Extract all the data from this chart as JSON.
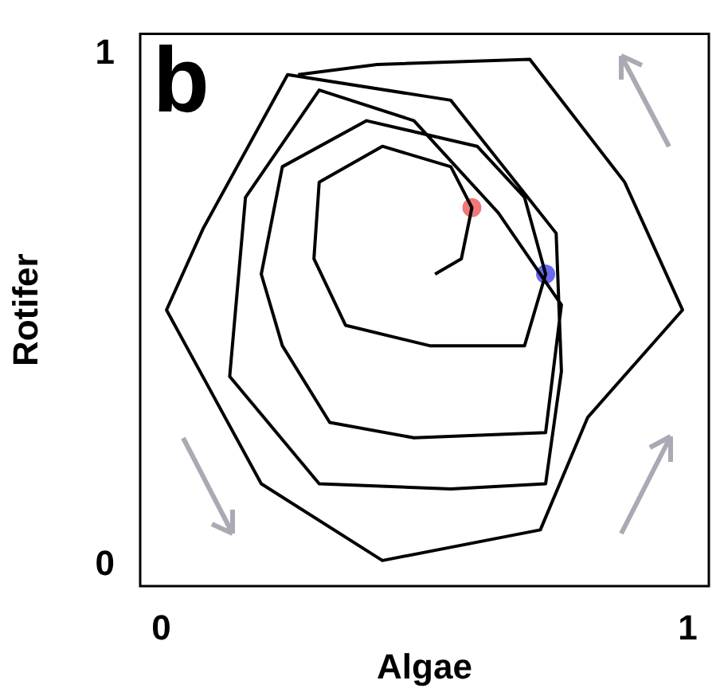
{
  "chart_data": {
    "type": "line",
    "xlabel": "Algae",
    "ylabel": "Rotifer",
    "annotations": [
      "b"
    ],
    "xlim": [
      -0.04,
      1.04
    ],
    "xticks": [
      0,
      1
    ],
    "ylim": [
      -0.04,
      1.04
    ],
    "yticks": [
      0,
      1
    ],
    "series": [
      {
        "color": "#000000",
        "marker": "none",
        "x": [
          0.52,
          0.57,
          0.59,
          0.55,
          0.42,
          0.3,
          0.29,
          0.35,
          0.51,
          0.69,
          0.73,
          0.69,
          0.6,
          0.39,
          0.23,
          0.19,
          0.23,
          0.32,
          0.48,
          0.73,
          0.76,
          0.64,
          0.48,
          0.3,
          0.16,
          0.13,
          0.3,
          0.55,
          0.73,
          0.76,
          0.75,
          0.55,
          0.24,
          0.08,
          0.01,
          0.19,
          0.42,
          0.72,
          0.81,
          0.99,
          0.88,
          0.7,
          0.41,
          0.26
        ],
        "values": [
          0.57,
          0.6,
          0.7,
          0.78,
          0.82,
          0.75,
          0.6,
          0.47,
          0.43,
          0.43,
          0.57,
          0.72,
          0.82,
          0.87,
          0.78,
          0.57,
          0.43,
          0.28,
          0.25,
          0.26,
          0.51,
          0.69,
          0.87,
          0.93,
          0.72,
          0.37,
          0.16,
          0.15,
          0.16,
          0.38,
          0.65,
          0.91,
          0.96,
          0.66,
          0.5,
          0.16,
          0.01,
          0.07,
          0.29,
          0.5,
          0.75,
          0.99,
          0.98,
          0.96
        ]
      },
      {
        "type": "scatter",
        "marker": "circle",
        "x": [
          0.59,
          0.73
        ],
        "values": [
          0.7,
          0.57
        ],
        "colors": [
          "#f07878",
          "#6a6af0"
        ]
      }
    ]
  }
}
